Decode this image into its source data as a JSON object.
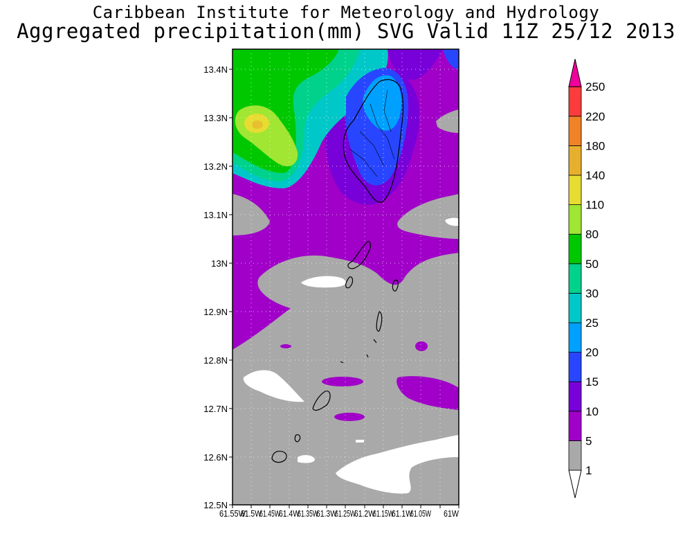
{
  "header": {
    "institute": "Caribbean Institute for Meteorology and Hydrology",
    "product": "Aggregated precipitation(mm) SVG Valid 11Z 25/12 2013"
  },
  "map": {
    "lat_labels": [
      "13.4N",
      "13.3N",
      "13.2N",
      "13.1N",
      "13N",
      "12.9N",
      "12.8N",
      "12.7N",
      "12.6N",
      "12.5N"
    ],
    "lon_labels": [
      "61.55W",
      "61.5W",
      "61.45W",
      "61.4W",
      "61.35W",
      "61.3W",
      "61.25W",
      "61.2W",
      "61.15W",
      "61.1W",
      "61.05W",
      "61W"
    ]
  },
  "colorbar": {
    "levels": [
      "1",
      "5",
      "10",
      "15",
      "20",
      "25",
      "30",
      "50",
      "80",
      "110",
      "140",
      "180",
      "220",
      "250"
    ],
    "colors": [
      "#a9a9a9",
      "#a000c8",
      "#7800d8",
      "#2846ff",
      "#00a0ff",
      "#00c8c8",
      "#00d28c",
      "#00c800",
      "#a0e632",
      "#e6dc32",
      "#e6af2d",
      "#f08228",
      "#fa3c3c",
      "#f0009c"
    ]
  }
}
